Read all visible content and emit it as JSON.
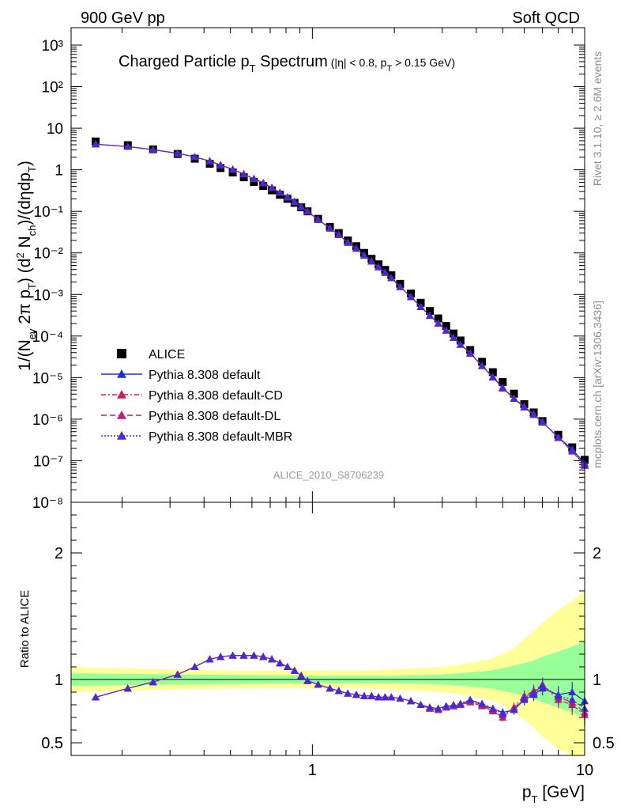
{
  "header": {
    "left": "900 GeV pp",
    "right": "Soft QCD"
  },
  "side_labels": {
    "rivet": "Rivet 3.1.10, ≥ 2.6M events",
    "mcplots": "mcplots.cern.ch [arXiv:1306.3436]"
  },
  "chart_data": [
    {
      "type": "scatter",
      "title": "Charged Particle p_T Spectrum",
      "title_main": "Charged Particle p",
      "title_sub": "T",
      "title_tail": " Spectrum",
      "cuts_a": "(|η| < 0.8, p",
      "cuts_sub": "T",
      "cuts_b": " > 0.15 GeV)",
      "ylabel_parts": [
        "1/(N",
        "ev",
        " 2π p",
        "T",
        ") (d",
        "2",
        " N",
        "ch",
        ")/(dηdp",
        "T",
        ")"
      ],
      "analysis_tag": "ALICE_2010_S8706239",
      "xscale": "log",
      "yscale": "log",
      "xlim": [
        0.13,
        10
      ],
      "ylim": [
        1e-08,
        1000
      ],
      "y_tick_labels": [
        "10⁻⁸",
        "10⁻⁷",
        "10⁻⁶",
        "10⁻⁵",
        "10⁻⁴",
        "10⁻³",
        "10⁻²",
        "10⁻¹",
        "1",
        "10",
        "10²",
        "10³"
      ],
      "legend_position": "lower-left",
      "x": [
        0.16,
        0.21,
        0.26,
        0.32,
        0.37,
        0.42,
        0.46,
        0.51,
        0.56,
        0.61,
        0.66,
        0.71,
        0.76,
        0.81,
        0.86,
        0.91,
        0.96,
        1.05,
        1.16,
        1.25,
        1.35,
        1.45,
        1.55,
        1.65,
        1.75,
        1.85,
        1.95,
        2.1,
        2.3,
        2.5,
        2.7,
        2.9,
        3.1,
        3.3,
        3.5,
        3.8,
        4.2,
        4.6,
        5.0,
        5.5,
        6.0,
        6.5,
        7.0,
        8.0,
        9.0,
        10.0
      ],
      "series": [
        {
          "name": "ALICE",
          "color": "#000000",
          "marker": "square",
          "values": [
            4.8,
            3.9,
            3.1,
            2.4,
            1.85,
            1.4,
            1.1,
            0.86,
            0.66,
            0.51,
            0.41,
            0.32,
            0.25,
            0.2,
            0.16,
            0.125,
            0.1,
            0.066,
            0.042,
            0.03,
            0.02,
            0.0145,
            0.01,
            0.0072,
            0.0053,
            0.0039,
            0.0029,
            0.0018,
            0.00105,
            0.00063,
            0.0004,
            0.000265,
            0.000175,
            0.000115,
            7.8e-05,
            4.6e-05,
            2.4e-05,
            1.35e-05,
            7.8e-06,
            4.1e-06,
            2.3e-06,
            1.45e-06,
            9e-07,
            4.2e-07,
            2.1e-07,
            1.05e-07
          ]
        },
        {
          "name": "Pythia 8.308 default",
          "color": "#1f2fd6",
          "marker": "triangle",
          "dash": "",
          "ratio": [
            0.86,
            0.93,
            0.98,
            1.04,
            1.1,
            1.16,
            1.18,
            1.19,
            1.19,
            1.19,
            1.18,
            1.16,
            1.13,
            1.1,
            1.07,
            1.03,
            0.99,
            0.96,
            0.93,
            0.91,
            0.89,
            0.88,
            0.87,
            0.87,
            0.86,
            0.86,
            0.86,
            0.85,
            0.83,
            0.8,
            0.78,
            0.77,
            0.79,
            0.79,
            0.8,
            0.84,
            0.8,
            0.77,
            0.74,
            0.76,
            0.84,
            0.88,
            0.93,
            0.88,
            0.9,
            0.83
          ]
        },
        {
          "name": "Pythia 8.308 default-CD",
          "color": "#c0245a",
          "marker": "triangle",
          "dash": "6,3,2,3",
          "ratio": [
            0.86,
            0.93,
            0.98,
            1.04,
            1.1,
            1.16,
            1.18,
            1.19,
            1.19,
            1.19,
            1.18,
            1.16,
            1.13,
            1.1,
            1.07,
            1.03,
            0.99,
            0.96,
            0.93,
            0.91,
            0.89,
            0.88,
            0.87,
            0.87,
            0.86,
            0.86,
            0.86,
            0.85,
            0.83,
            0.8,
            0.77,
            0.76,
            0.78,
            0.79,
            0.8,
            0.82,
            0.79,
            0.75,
            0.7,
            0.78,
            0.87,
            0.91,
            0.96,
            0.84,
            0.8,
            0.72
          ]
        },
        {
          "name": "Pythia 8.308 default-DL",
          "color": "#b0247a",
          "marker": "triangle",
          "dash": "7,4",
          "ratio": [
            0.86,
            0.93,
            0.98,
            1.04,
            1.1,
            1.16,
            1.18,
            1.19,
            1.19,
            1.19,
            1.18,
            1.16,
            1.13,
            1.1,
            1.07,
            1.03,
            0.99,
            0.96,
            0.93,
            0.91,
            0.89,
            0.88,
            0.87,
            0.87,
            0.86,
            0.86,
            0.86,
            0.85,
            0.83,
            0.8,
            0.77,
            0.76,
            0.78,
            0.79,
            0.8,
            0.83,
            0.8,
            0.76,
            0.72,
            0.77,
            0.86,
            0.9,
            0.95,
            0.86,
            0.82,
            0.74
          ]
        },
        {
          "name": "Pythia 8.308 default-MBR",
          "color": "#4a2ad0",
          "marker": "triangle",
          "dash": "2,2",
          "ratio": [
            0.86,
            0.93,
            0.98,
            1.04,
            1.1,
            1.16,
            1.18,
            1.19,
            1.19,
            1.19,
            1.18,
            1.16,
            1.13,
            1.1,
            1.07,
            1.03,
            0.99,
            0.96,
            0.93,
            0.91,
            0.89,
            0.88,
            0.87,
            0.87,
            0.86,
            0.86,
            0.86,
            0.85,
            0.83,
            0.8,
            0.78,
            0.77,
            0.79,
            0.8,
            0.81,
            0.84,
            0.81,
            0.77,
            0.73,
            0.76,
            0.85,
            0.89,
            0.95,
            0.87,
            0.84,
            0.77
          ]
        }
      ]
    },
    {
      "type": "scatter",
      "ylabel": "Ratio to ALICE",
      "xlabel_main": "p",
      "xlabel_sub": "T",
      "xlabel_tail": " [GeV]",
      "xscale": "log",
      "xlim": [
        0.13,
        10
      ],
      "ylim": [
        0.4,
        2.4
      ],
      "x_tick_labels": [
        "1",
        "10"
      ],
      "y_tick_labels": [
        "0.5",
        "1",
        "2"
      ],
      "reference_line": 1.0,
      "band_colors": {
        "stat": "#99ff99",
        "total": "#ffff99"
      },
      "band_x": [
        0.13,
        0.3,
        0.6,
        1.0,
        1.5,
        2.0,
        2.5,
        3.0,
        3.5,
        4.0,
        4.5,
        5.0,
        5.5,
        6.0,
        6.5,
        7.0,
        7.5,
        8.0,
        9.0,
        10.0
      ],
      "band_stat": [
        0.05,
        0.04,
        0.035,
        0.03,
        0.03,
        0.03,
        0.035,
        0.04,
        0.05,
        0.06,
        0.07,
        0.09,
        0.11,
        0.13,
        0.15,
        0.18,
        0.2,
        0.22,
        0.26,
        0.3
      ],
      "band_total": [
        0.1,
        0.08,
        0.07,
        0.07,
        0.07,
        0.08,
        0.09,
        0.1,
        0.12,
        0.14,
        0.16,
        0.2,
        0.25,
        0.32,
        0.38,
        0.45,
        0.5,
        0.55,
        0.62,
        0.7
      ]
    }
  ]
}
